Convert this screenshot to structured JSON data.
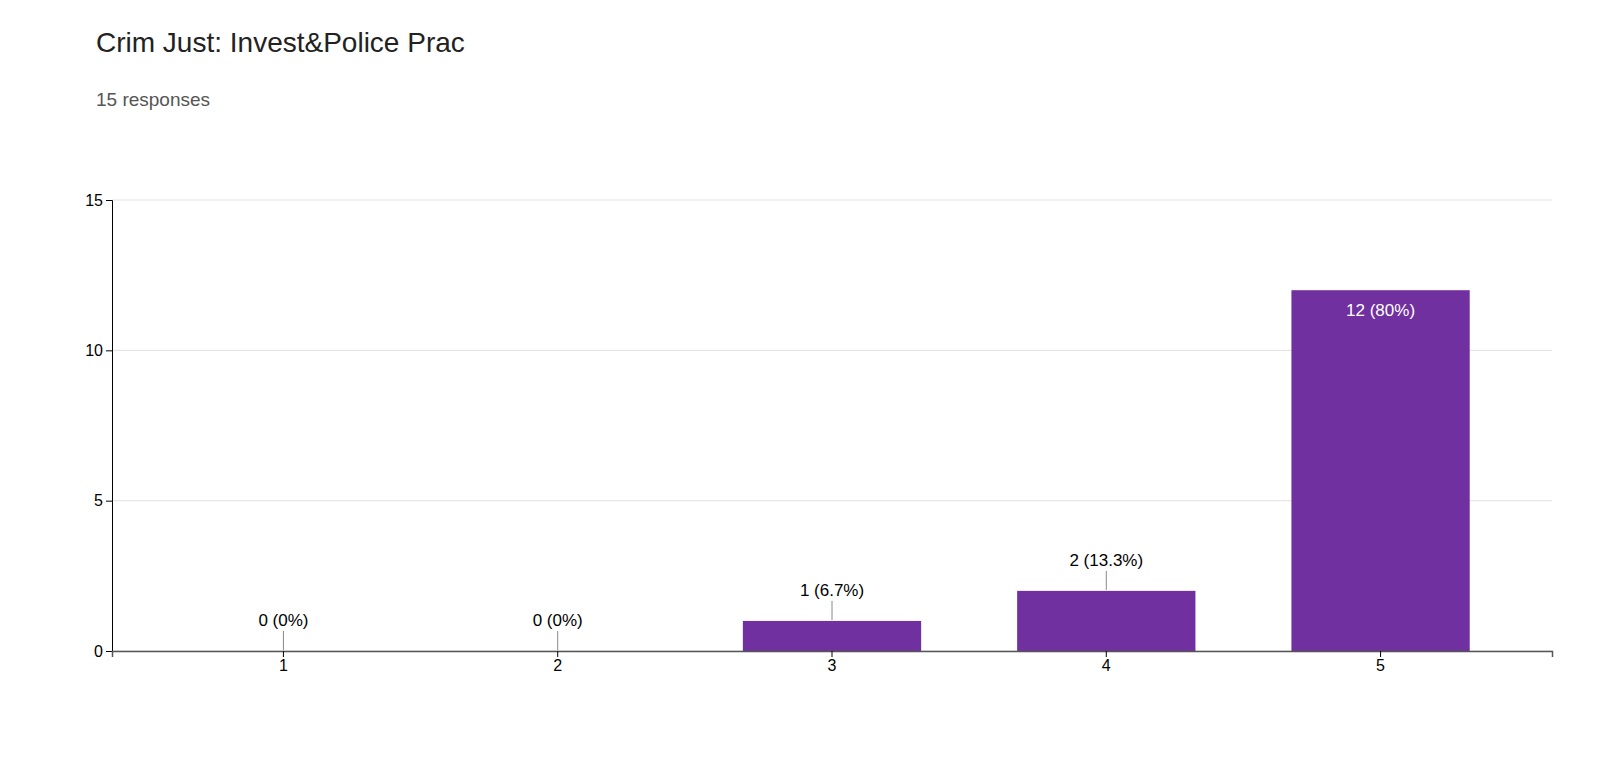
{
  "chart_data": {
    "type": "bar",
    "title": "Crim Just: Invest&Police Prac",
    "subtitle": "15 responses",
    "categories": [
      1,
      2,
      3,
      4,
      5
    ],
    "values": [
      0,
      0,
      1,
      2,
      12
    ],
    "value_labels": [
      "0 (0%)",
      "0 (0%)",
      "1 (6.7%)",
      "2 (13.3%)",
      "12 (80%)"
    ],
    "data_labels": true,
    "color": "#7030A0",
    "ylim": [
      0,
      15
    ],
    "yticks": [
      0,
      5,
      10,
      15
    ],
    "grid": true
  }
}
